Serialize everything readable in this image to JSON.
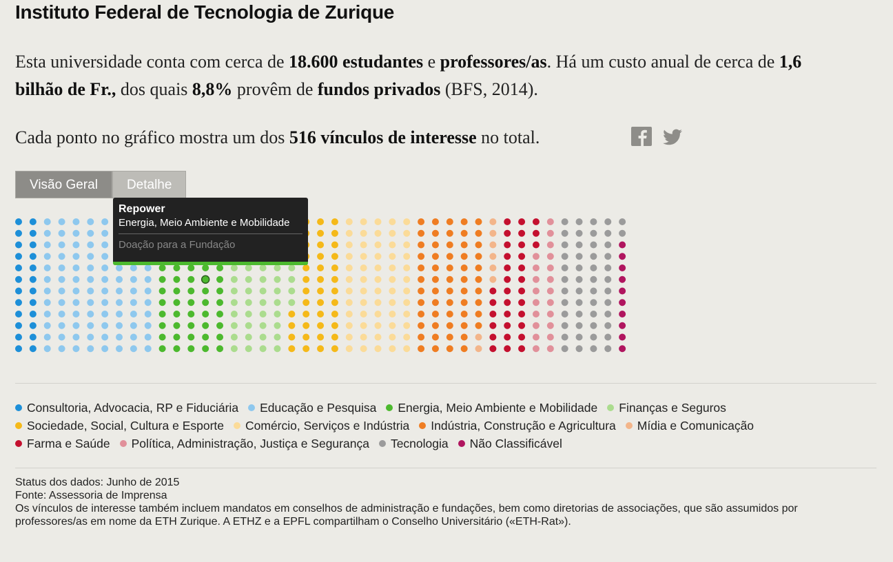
{
  "header": {
    "title": "Instituto Federal de Tecnologia de Zurique"
  },
  "intro": [
    [
      {
        "text": "Esta universidade conta com cerca de "
      },
      {
        "text": "18.600 estudantes",
        "bold": true
      },
      {
        "text": " e "
      },
      {
        "text": "professores/as",
        "bold": true
      },
      {
        "text": ". Há um custo anual de cerca de "
      },
      {
        "text": "1,6 bilhão de Fr.,",
        "bold": true
      },
      {
        "text": " dos quais "
      },
      {
        "text": "8,8%",
        "bold": true
      },
      {
        "text": " provêm de "
      },
      {
        "text": "fundos privados",
        "bold": true
      },
      {
        "text": " (BFS, 2014)."
      }
    ],
    [
      {
        "text": "Cada ponto no gráfico mostra um dos "
      },
      {
        "text": "516 vínculos de interesse",
        "bold": true
      },
      {
        "text": " no total."
      }
    ]
  ],
  "tabs": [
    {
      "label": "Visão Geral",
      "active": true
    },
    {
      "label": "Detalhe",
      "active": false
    }
  ],
  "tooltip": {
    "title": "Repower",
    "category": "Energia, Meio Ambiente e Mobilidade",
    "detail": "Doação para a Fundação"
  },
  "chart_data": {
    "type": "dot-matrix",
    "series": [
      {
        "name": "Consultoria, Advocacia, RP e Fiduciária",
        "color": "#1d8fd8",
        "values": [
          24
        ]
      },
      {
        "name": "Educação e Pesquisa",
        "color": "#8ec8ee",
        "values": [
          96
        ]
      },
      {
        "name": "Energia, Meio Ambiente e Mobilidade",
        "color": "#4cb92e",
        "values": [
          60
        ]
      },
      {
        "name": "Finanças e Seguros",
        "color": "#abdc8e",
        "values": [
          56
        ]
      },
      {
        "name": "Sociedade, Social, Cultura e Esporte",
        "color": "#f5b919",
        "values": [
          40
        ]
      },
      {
        "name": "Comércio, Serviços e Indústria",
        "color": "#fbdb98",
        "values": [
          60
        ]
      },
      {
        "name": "Indústria, Construção e Agricultura",
        "color": "#ef7d22",
        "values": [
          58
        ]
      },
      {
        "name": "Mídia e Comunicação",
        "color": "#f3b58a",
        "values": [
          8
        ]
      },
      {
        "name": "Farma e Saúde",
        "color": "#c4102f",
        "values": [
          33
        ]
      },
      {
        "name": "Política, Administração, Justiça e Segurança",
        "color": "#e1909a",
        "values": [
          21
        ]
      },
      {
        "name": "Tecnologia",
        "color": "#9b9b9b",
        "values": [
          50
        ]
      },
      {
        "name": "Não Classificável",
        "color": "#b0155f",
        "values": [
          10
        ]
      }
    ]
  },
  "footer": [
    "Status dos dados: Junho de 2015",
    "Fonte: Assessoria de Imprensa",
    "Os vínculos de interesse também incluem mandatos em conselhos de administração e fundações, bem como diretorias de associações, que são assumidos por professores/as em nome da ETH Zurique. A ETHZ e a EPFL compartilham o Conselho Universitário («ETH-Rat»)."
  ]
}
